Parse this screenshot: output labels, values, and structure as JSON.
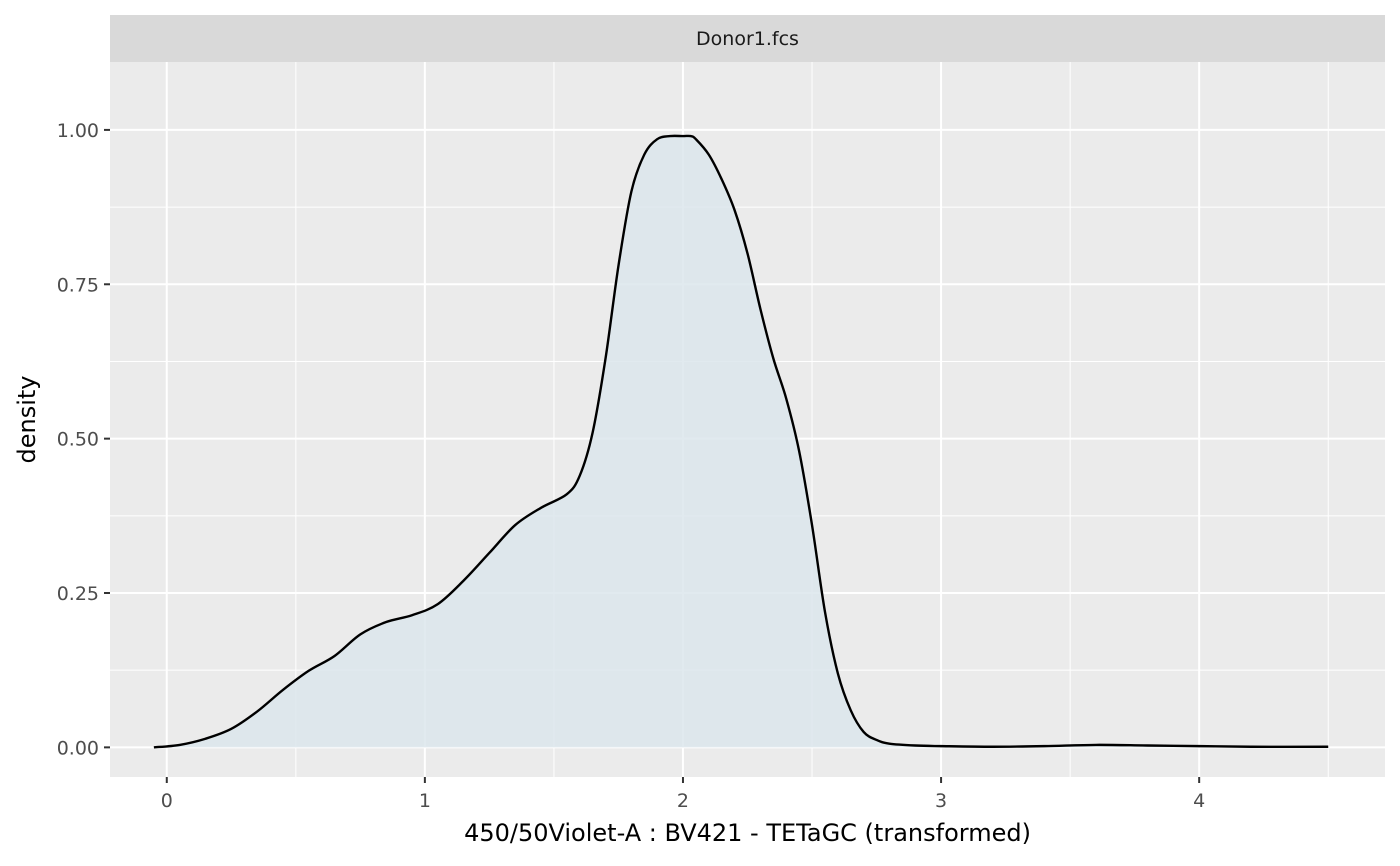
{
  "chart_data": {
    "type": "area",
    "facet_label": "Donor1.fcs",
    "xlabel": "450/50Violet-A : BV421 - TETaGC (transformed)",
    "ylabel": "density",
    "xlim": [
      -0.22,
      4.72
    ],
    "ylim": [
      -0.048,
      1.11
    ],
    "x_ticks": [
      0,
      1,
      2,
      3,
      4
    ],
    "x_tick_labels": [
      "0",
      "1",
      "2",
      "3",
      "4"
    ],
    "y_ticks": [
      0,
      0.25,
      0.5,
      0.75,
      1.0
    ],
    "y_tick_labels": [
      "0.00",
      "0.25",
      "0.50",
      "0.75",
      "1.00"
    ],
    "grid": true,
    "colors": {
      "panel_background": "#ebebeb",
      "grid_line": "#ffffff",
      "strip_background": "#d9d9d9",
      "fill": "#dce6ec",
      "line": "#000000"
    },
    "series": [
      {
        "x": [
          -0.05,
          0.05,
          0.15,
          0.25,
          0.35,
          0.45,
          0.55,
          0.65,
          0.75,
          0.85,
          0.95,
          1.05,
          1.15,
          1.25,
          1.35,
          1.45,
          1.55,
          1.6,
          1.65,
          1.7,
          1.75,
          1.8,
          1.85,
          1.9,
          1.95,
          2.0,
          2.03,
          2.05,
          2.1,
          2.15,
          2.2,
          2.25,
          2.3,
          2.35,
          2.4,
          2.45,
          2.5,
          2.55,
          2.6,
          2.65,
          2.7,
          2.75,
          2.8,
          2.9,
          3.0,
          3.2,
          3.4,
          3.6,
          3.8,
          4.0,
          4.2,
          4.5
        ],
        "y": [
          0.0,
          0.004,
          0.014,
          0.03,
          0.058,
          0.093,
          0.124,
          0.148,
          0.183,
          0.203,
          0.214,
          0.232,
          0.27,
          0.315,
          0.36,
          0.388,
          0.41,
          0.44,
          0.51,
          0.63,
          0.78,
          0.9,
          0.96,
          0.985,
          0.99,
          0.99,
          0.99,
          0.985,
          0.96,
          0.92,
          0.87,
          0.8,
          0.71,
          0.63,
          0.565,
          0.48,
          0.36,
          0.22,
          0.12,
          0.06,
          0.025,
          0.012,
          0.006,
          0.003,
          0.002,
          0.001,
          0.002,
          0.004,
          0.003,
          0.002,
          0.001,
          0.001
        ]
      }
    ]
  }
}
